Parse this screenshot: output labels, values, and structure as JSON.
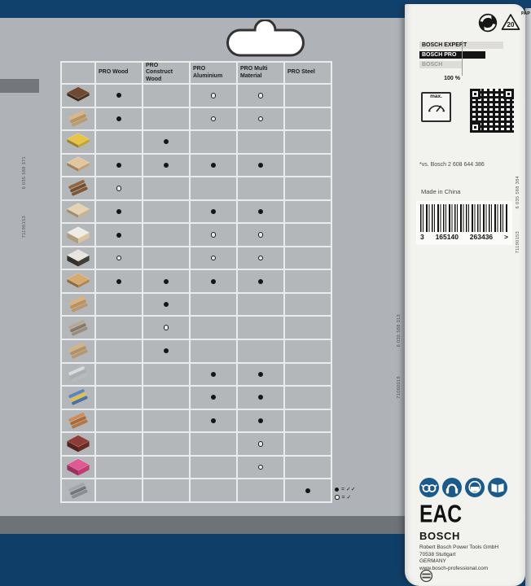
{
  "package": {
    "codes": {
      "left_top": "6 035 588 371",
      "left_bottom": "71190153",
      "mid_top": "6 035 588 313",
      "mid_bottom": "71060019",
      "right_top": "6 035 588 384",
      "right_bottom": "71190153"
    }
  },
  "table": {
    "col_headers": [
      "PRO Wood",
      "PRO Construct Wood",
      "PRO Aluminium",
      "PRO Multi Material",
      "PRO Steel"
    ],
    "rows": [
      {
        "material": "solid-hardwood",
        "shape": "panel",
        "colors": [
          "#6d4a30",
          "#4e3320"
        ],
        "dots": [
          "f",
          "",
          "o",
          "o",
          ""
        ]
      },
      {
        "material": "solid-softwood",
        "shape": "bars",
        "colors": [
          "#dcb684",
          "#bb9259"
        ],
        "dots": [
          "f",
          "",
          "o",
          "o",
          ""
        ]
      },
      {
        "material": "osb-board",
        "shape": "panel",
        "colors": [
          "#e6c545",
          "#c7a32b"
        ],
        "dots": [
          "",
          "f",
          "",
          "",
          ""
        ]
      },
      {
        "material": "plywood",
        "shape": "panel",
        "colors": [
          "#e2c79e",
          "#c3a271"
        ],
        "dots": [
          "f",
          "f",
          "f",
          "f",
          ""
        ]
      },
      {
        "material": "rough-sawn-timber",
        "shape": "bars",
        "colors": [
          "#95673f",
          "#74502f"
        ],
        "dots": [
          "o",
          "",
          "",
          "",
          ""
        ]
      },
      {
        "material": "chipboard",
        "shape": "panel",
        "colors": [
          "#e6d3b4",
          "#cbb28a"
        ],
        "dots": [
          "f",
          "",
          "f",
          "f",
          ""
        ]
      },
      {
        "material": "coated-chipboard",
        "shape": "stack",
        "colors": [
          "#efece6",
          "#d9c5a0"
        ],
        "dots": [
          "f",
          "",
          "o",
          "o",
          ""
        ]
      },
      {
        "material": "laminate-panel",
        "shape": "stack",
        "colors": [
          "#e8e5df",
          "#413c36"
        ],
        "dots": [
          "o",
          "",
          "o",
          "o",
          ""
        ]
      },
      {
        "material": "blockboard",
        "shape": "panel",
        "colors": [
          "#d8a96c",
          "#b3854b"
        ],
        "dots": [
          "f",
          "f",
          "f",
          "f",
          ""
        ]
      },
      {
        "material": "construction-timber",
        "shape": "bars",
        "colors": [
          "#ddb27b",
          "#bd9257"
        ],
        "dots": [
          "",
          "f",
          "",
          "",
          ""
        ]
      },
      {
        "material": "nail-embedded-wood",
        "shape": "bars",
        "colors": [
          "#b5a894",
          "#857a66"
        ],
        "dots": [
          "",
          "o",
          "",
          "",
          ""
        ]
      },
      {
        "material": "formwork-wood",
        "shape": "bars",
        "colors": [
          "#d6b383",
          "#b59161"
        ],
        "dots": [
          "",
          "f",
          "",
          "",
          ""
        ]
      },
      {
        "material": "aluminium-profiles",
        "shape": "bars",
        "colors": [
          "#d9dbdd",
          "#a9adb1"
        ],
        "dots": [
          "",
          "",
          "f",
          "f",
          ""
        ]
      },
      {
        "material": "non-ferrous-profiles",
        "shape": "bars",
        "colors": [
          "#5b85bb",
          "#e3bf4a"
        ],
        "dots": [
          "",
          "",
          "f",
          "f",
          ""
        ]
      },
      {
        "material": "copper-pipes",
        "shape": "bars",
        "colors": [
          "#d28c52",
          "#ad6a35"
        ],
        "dots": [
          "",
          "",
          "f",
          "f",
          ""
        ]
      },
      {
        "material": "hpl-panel",
        "shape": "stack",
        "colors": [
          "#8e3d36",
          "#6b2b25"
        ],
        "dots": [
          "",
          "",
          "",
          "o",
          ""
        ]
      },
      {
        "material": "acrylic-sheet",
        "shape": "stack",
        "colors": [
          "#e05a92",
          "#c23b74"
        ],
        "dots": [
          "",
          "",
          "",
          "o",
          ""
        ]
      },
      {
        "material": "steel-profiles",
        "shape": "bars",
        "colors": [
          "#a3a7ab",
          "#73777b"
        ],
        "dots": [
          "",
          "",
          "",
          "",
          "f"
        ]
      }
    ],
    "legend": [
      {
        "dot": "f",
        "label": "= ✓✓"
      },
      {
        "dot": "o",
        "label": "= ✓"
      }
    ]
  },
  "panel": {
    "pap_code": "20",
    "pap_label": "PAP",
    "comparison": {
      "bars": [
        {
          "label": "BOSCH EXPERT",
          "percent": 198,
          "style": "track"
        },
        {
          "label": "BOSCH PRO",
          "percent": 156,
          "style": "filled"
        },
        {
          "label": "BOSCH",
          "percent": 100,
          "style": "muted"
        }
      ],
      "scale_label": "100 %"
    },
    "max_icon_label": "max.",
    "footnote": "*vs. Bosch 2 608 644 386",
    "made_in": "Made in China",
    "barcode": {
      "groups": [
        "3",
        "165140",
        "263436",
        ">"
      ]
    },
    "safety_icons": [
      "safety-goggles",
      "ear-protection",
      "dust-mask",
      "read-manual"
    ],
    "eac_label": "EAC",
    "brand": "BOSCH",
    "address": [
      "Robert Bosch Power Tools GmbH",
      "70538 Stuttgart",
      "GERMANY",
      "www.bosch-professional.com"
    ]
  }
}
